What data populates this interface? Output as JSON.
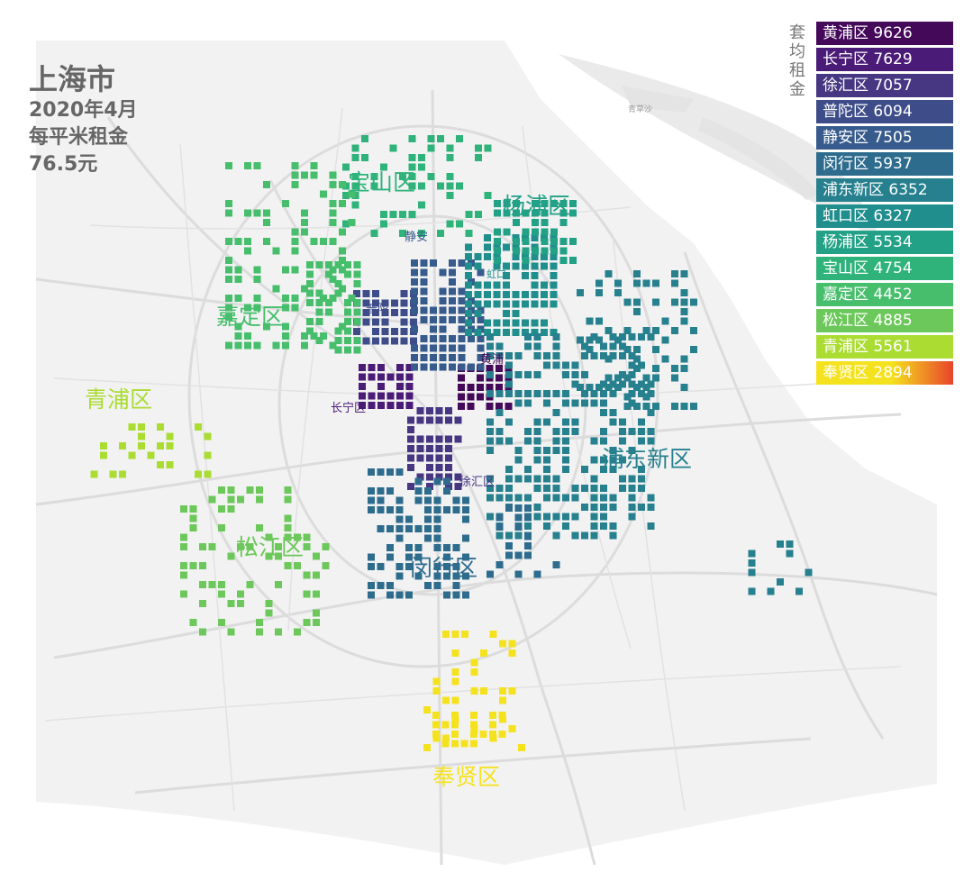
{
  "title": {
    "city": "上海市",
    "date": "2020年4月",
    "metric": "每平米租金",
    "value": "76.5元"
  },
  "legend": {
    "title": "套均租金",
    "items": [
      {
        "label": "黄浦区 9626",
        "color": "#45095a"
      },
      {
        "label": "长宁区 7629",
        "color": "#4b1b78"
      },
      {
        "label": "徐汇区 7057",
        "color": "#473783"
      },
      {
        "label": "普陀区  6094",
        "color": "#3e4d8a"
      },
      {
        "label": "静安区 7505",
        "color": "#375b8d"
      },
      {
        "label": "闵行区 5937",
        "color": "#2e6c8e"
      },
      {
        "label": "浦东新区 6352",
        "color": "#26808e"
      },
      {
        "label": "虹口区 6327",
        "color": "#1f8e8c"
      },
      {
        "label": "杨浦区 5534",
        "color": "#22a186"
      },
      {
        "label": "宝山区 4754",
        "color": "#2fb37a"
      },
      {
        "label": "嘉定区 4452",
        "color": "#47be6c"
      },
      {
        "label": "松江区 4885",
        "color": "#6cc85a"
      },
      {
        "label": "青浦区 5561",
        "color": "#aadc32"
      },
      {
        "label": "奉贤区 2894",
        "color": "#f5e21e",
        "gradient_end": "#e8442a"
      }
    ]
  },
  "district_labels": [
    {
      "text": "宝山区",
      "color": "#2fb37a"
    },
    {
      "text": "杨浦区",
      "color": "#22a186"
    },
    {
      "text": "嘉定区",
      "color": "#47be6c"
    },
    {
      "text": "青浦区",
      "color": "#aadc32"
    },
    {
      "text": "浦东新区",
      "color": "#26808e"
    },
    {
      "text": "松江区",
      "color": "#6cc85a"
    },
    {
      "text": "闵行区",
      "color": "#2e6c8e"
    },
    {
      "text": "奉贤区",
      "color": "#f5e21e"
    }
  ],
  "small_labels": [
    {
      "text": "静安",
      "color": "#375b8d"
    },
    {
      "text": "虹口",
      "color": "#1f8e8c"
    },
    {
      "text": "普陀",
      "color": "#3e4d8a"
    },
    {
      "text": "黄浦",
      "color": "#45095a"
    },
    {
      "text": "长宁区",
      "color": "#4b1b78"
    },
    {
      "text": "徐汇区",
      "color": "#473783"
    }
  ],
  "basemap_label": "青草沙"
}
